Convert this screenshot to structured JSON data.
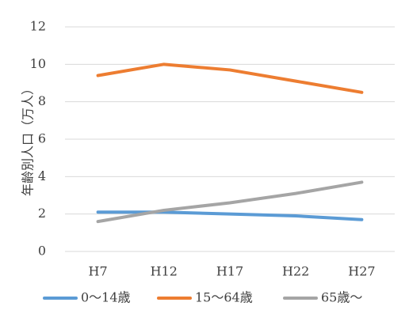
{
  "chart_data": {
    "type": "line",
    "categories": [
      "H7",
      "H12",
      "H17",
      "H22",
      "H27"
    ],
    "ylabel": "年齢別人口（万人）",
    "xlabel": "",
    "title": "",
    "ylim": [
      0,
      12
    ],
    "yticks": [
      0,
      2,
      4,
      6,
      8,
      10,
      12
    ],
    "ytick_labels": [
      "0",
      "2",
      "4",
      "6",
      "8",
      "10",
      "12"
    ],
    "grid": true,
    "legend_position": "bottom",
    "series": [
      {
        "name": "0～14歳",
        "color": "#5B9BD5",
        "values": [
          2.1,
          2.1,
          2.0,
          1.9,
          1.7
        ]
      },
      {
        "name": "15～64歳",
        "color": "#ED7D31",
        "values": [
          9.4,
          10.0,
          9.7,
          9.1,
          8.5
        ]
      },
      {
        "name": "65歳～",
        "color": "#A5A5A5",
        "values": [
          1.6,
          2.2,
          2.6,
          3.1,
          3.7
        ]
      }
    ]
  }
}
